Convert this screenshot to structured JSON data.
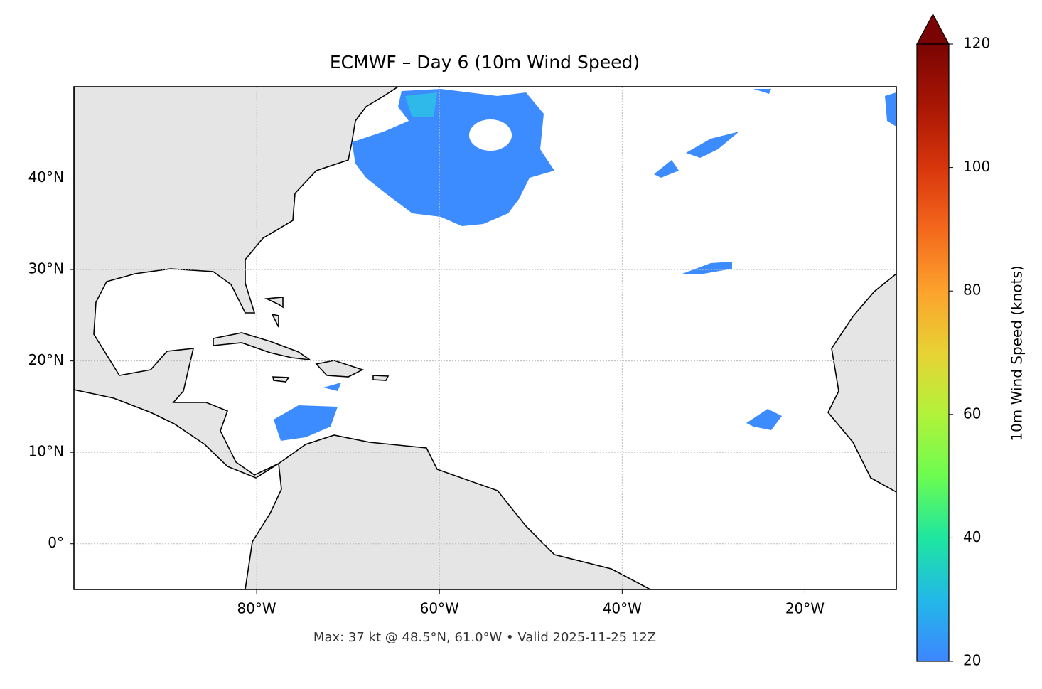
{
  "map": {
    "title": "ECMWF – Day 6 (10m Wind Speed)",
    "note": "Max: 37 kt @ 48.5°N, 61.0°W • Valid 2025-11-25 12Z",
    "xlim": [
      -100,
      -10
    ],
    "ylim": [
      -5,
      50
    ],
    "xticks": [
      {
        "value": -80,
        "label": "80°W"
      },
      {
        "value": -60,
        "label": "60°W"
      },
      {
        "value": -40,
        "label": "40°W"
      },
      {
        "value": -20,
        "label": "20°W"
      }
    ],
    "yticks": [
      {
        "value": 0,
        "label": "0°"
      },
      {
        "value": 10,
        "label": "10°N"
      },
      {
        "value": 20,
        "label": "20°N"
      },
      {
        "value": 30,
        "label": "30°N"
      },
      {
        "value": 40,
        "label": "40°N"
      }
    ],
    "grid": true,
    "colorbar": {
      "label": "10m Wind Speed (knots)",
      "lim": [
        20,
        120
      ],
      "ticks": [
        20,
        40,
        60,
        80,
        100,
        120
      ],
      "colors": [
        "#3d86ff",
        "#22b8e8",
        "#1ee6a0",
        "#6cfc50",
        "#b2f23a",
        "#e8d234",
        "#fca22c",
        "#f4681c",
        "#d8360c",
        "#a81604",
        "#7a0403"
      ],
      "extend_color": "#7a0403"
    }
  }
}
